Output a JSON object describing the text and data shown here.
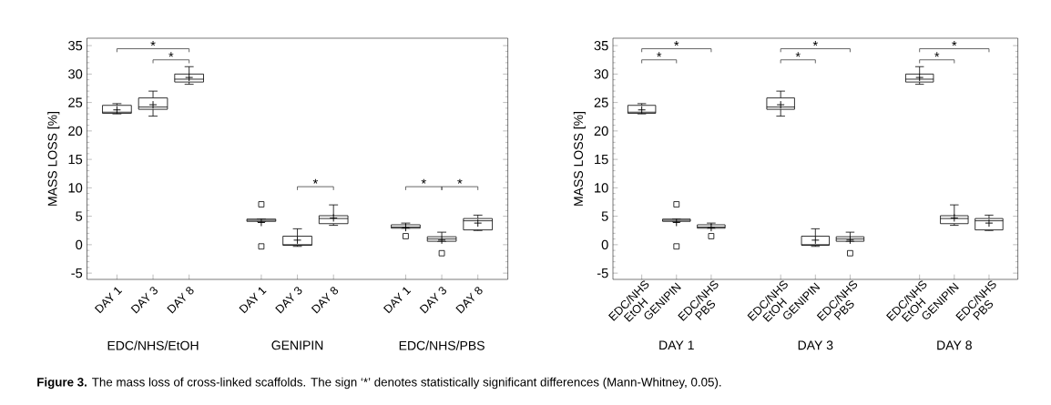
{
  "chart_data": [
    {
      "type": "box",
      "ylabel": "MASS LOSS [%]",
      "ylim": [
        -6.1,
        36.3
      ],
      "yticks": [
        -5,
        0,
        5,
        10,
        15,
        20,
        25,
        30,
        35
      ],
      "categories": [
        "DAY 1",
        "DAY 3",
        "DAY 8",
        null,
        "DAY 1",
        "DAY 3",
        "DAY 8",
        null,
        "DAY 1",
        "DAY 3",
        "DAY 8"
      ],
      "boxes": [
        {
          "low": 23.0,
          "q1": 23.1,
          "median": 23.3,
          "q3": 24.5,
          "high": 24.8,
          "mean": 23.7
        },
        {
          "low": 22.6,
          "q1": 23.8,
          "median": 24.2,
          "q3": 25.8,
          "high": 27.0,
          "mean": 24.6
        },
        {
          "low": 28.2,
          "q1": 28.6,
          "median": 29.1,
          "q3": 30.0,
          "high": 31.3,
          "mean": 29.4
        },
        null,
        {
          "low": 4.1,
          "q1": 4.1,
          "median": 4.3,
          "q3": 4.5,
          "high": 4.5,
          "mean": 3.9,
          "outliers": [
            7.1,
            -0.3
          ]
        },
        {
          "low": -0.3,
          "q1": -0.1,
          "median": 0.0,
          "q3": 1.5,
          "high": 2.8,
          "mean": 0.8
        },
        {
          "low": 3.4,
          "q1": 3.7,
          "median": 4.6,
          "q3": 5.1,
          "high": 7.0,
          "mean": 4.7
        },
        null,
        {
          "low": 2.9,
          "q1": 2.9,
          "median": 3.1,
          "q3": 3.5,
          "high": 3.8,
          "mean": 3.0,
          "outliers": [
            1.5
          ]
        },
        {
          "low": 0.6,
          "q1": 0.6,
          "median": 1.0,
          "q3": 1.4,
          "high": 2.2,
          "mean": 0.8,
          "outliers": [
            -1.5
          ]
        },
        {
          "low": 2.5,
          "q1": 2.6,
          "median": 4.2,
          "q3": 4.6,
          "high": 5.2,
          "mean": 3.8
        }
      ],
      "annotations": [
        "EDC/NHS/EtOH",
        "GENIPIN",
        "EDC/NHS/PBS",
        "*",
        "*",
        "*",
        "*",
        "*",
        "**Figure 3.**  The mass loss of cross-linked scaffolds. The sign ‘*’ denotes statistically significant differences (Mann-Whitney, 0.05)."
      ]
    },
    {
      "type": "box",
      "ylabel": "MASS LOSS [%]",
      "ylim": [
        -6.1,
        36.3
      ],
      "yticks": [
        -5,
        0,
        5,
        10,
        15,
        20,
        25,
        30,
        35
      ],
      "categories": [
        "EDC/NHS EtOH",
        "GENIPIN",
        "EDC/NHS PBS",
        null,
        "EDC/NHS EtOH",
        "GENIPIN",
        "EDC/NHS PBS",
        null,
        "EDC/NHS EtOH",
        "GENIPIN",
        "EDC/NHS PBS"
      ],
      "boxes": [
        {
          "low": 23.0,
          "q1": 23.1,
          "median": 23.3,
          "q3": 24.5,
          "high": 24.8,
          "mean": 23.7
        },
        {
          "low": 4.1,
          "q1": 4.1,
          "median": 4.3,
          "q3": 4.5,
          "high": 4.5,
          "mean": 3.9,
          "outliers": [
            7.1,
            -0.3
          ]
        },
        {
          "low": 2.9,
          "q1": 2.9,
          "median": 3.1,
          "q3": 3.5,
          "high": 3.8,
          "mean": 3.0,
          "outliers": [
            1.5
          ]
        },
        null,
        {
          "low": 22.6,
          "q1": 23.8,
          "median": 24.2,
          "q3": 25.8,
          "high": 27.0,
          "mean": 24.6
        },
        {
          "low": -0.3,
          "q1": -0.1,
          "median": 0.0,
          "q3": 1.5,
          "high": 2.8,
          "mean": 0.8
        },
        {
          "low": 0.6,
          "q1": 0.6,
          "median": 1.0,
          "q3": 1.4,
          "high": 2.2,
          "mean": 0.8,
          "outliers": [
            -1.5
          ]
        },
        null,
        {
          "low": 28.2,
          "q1": 28.6,
          "median": 29.1,
          "q3": 30.0,
          "high": 31.3,
          "mean": 29.4
        },
        {
          "low": 3.4,
          "q1": 3.7,
          "median": 4.6,
          "q3": 5.1,
          "high": 7.0,
          "mean": 4.7
        },
        {
          "low": 2.5,
          "q1": 2.6,
          "median": 4.2,
          "q3": 4.6,
          "high": 5.2,
          "mean": 3.8
        }
      ],
      "annotations": [
        "DAY 1",
        "DAY 3",
        "DAY 8",
        "*",
        "*",
        "*",
        "*",
        "*",
        "*"
      ]
    }
  ]
}
